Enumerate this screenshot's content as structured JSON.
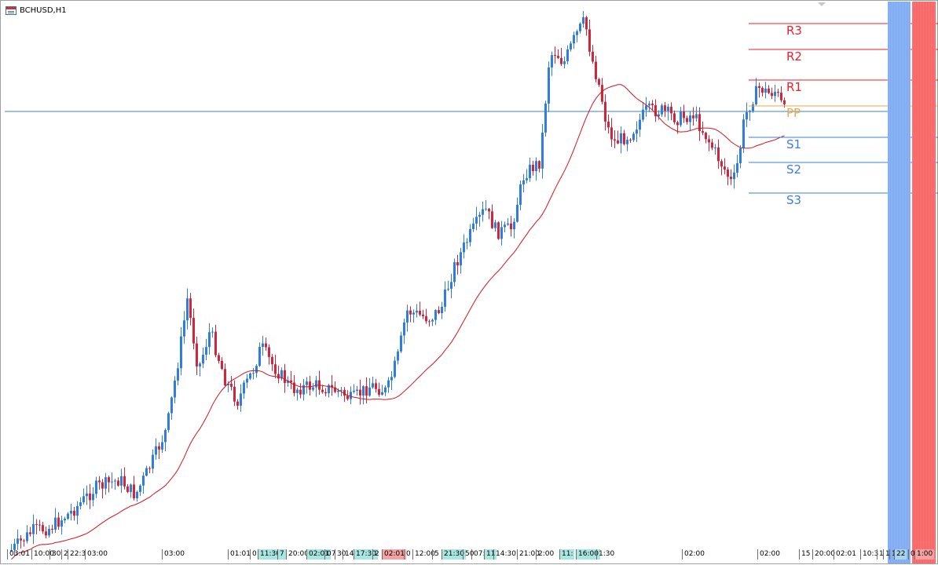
{
  "window": {
    "title": "BCHUSD,H1",
    "icon": "chart-window-icon"
  },
  "colors": {
    "bull_candle": "#2f7de1",
    "bear_candle": "#d0253a",
    "moving_average": "#d0151c",
    "resistance": "#e8202a",
    "support": "#3a7fd9",
    "pivot": "#e8a948",
    "crosshair": "#3a7fd9",
    "session_blue": "#8fb7f5",
    "session_red": "#ff6b6b"
  },
  "levels": [
    {
      "label": "R3",
      "kind": "resistance"
    },
    {
      "label": "R2",
      "kind": "resistance"
    },
    {
      "label": "R1",
      "kind": "resistance"
    },
    {
      "label": "PP",
      "kind": "pivot"
    },
    {
      "label": "S1",
      "kind": "support"
    },
    {
      "label": "S2",
      "kind": "support"
    },
    {
      "label": "S3",
      "kind": "support"
    }
  ],
  "time_axis": {
    "labels": [
      {
        "text": "03:01",
        "style": ""
      },
      {
        "text": "10:00",
        "style": ""
      },
      {
        "text": "30",
        "style": ""
      },
      {
        "text": "2",
        "style": ""
      },
      {
        "text": "22:3",
        "style": ""
      },
      {
        "text": "03:00",
        "style": ""
      },
      {
        "text": "03:00",
        "style": ""
      },
      {
        "text": "01:01",
        "style": ""
      },
      {
        "text": "0",
        "style": ""
      },
      {
        "text": "11:30",
        "style": "h-cyan"
      },
      {
        "text": "7",
        "style": "h-cyan"
      },
      {
        "text": "20:00",
        "style": ""
      },
      {
        "text": "02:01",
        "style": "h-cyan"
      },
      {
        "text": "07",
        "style": ""
      },
      {
        "text": "30",
        "style": ""
      },
      {
        "text": "14",
        "style": ""
      },
      {
        "text": "17:30",
        "style": "h-cyan"
      },
      {
        "text": "2",
        "style": ""
      },
      {
        "text": "02:01",
        "style": "h-red"
      },
      {
        "text": "0",
        "style": ""
      },
      {
        "text": "12:00",
        "style": ""
      },
      {
        "text": "5",
        "style": ""
      },
      {
        "text": "21:30",
        "style": "h-cyan"
      },
      {
        "text": "50",
        "style": ""
      },
      {
        "text": "07:",
        "style": ""
      },
      {
        "text": "11",
        "style": "h-cyan"
      },
      {
        "text": "14:30",
        "style": ""
      },
      {
        "text": "21:00",
        "style": ""
      },
      {
        "text": "2:00",
        "style": ""
      },
      {
        "text": "11:",
        "style": "h-cyan"
      },
      {
        "text": "16:00",
        "style": "h-cyan"
      },
      {
        "text": "1:30",
        "style": ""
      },
      {
        "text": "02:00",
        "style": ""
      },
      {
        "text": "02:00",
        "style": ""
      },
      {
        "text": "15",
        "style": ""
      },
      {
        "text": "20:00",
        "style": ""
      },
      {
        "text": "02:01",
        "style": ""
      },
      {
        "text": "10:3",
        "style": ""
      },
      {
        "text": "1",
        "style": ""
      },
      {
        "text": "1",
        "style": ""
      },
      {
        "text": "1",
        "style": ""
      },
      {
        "text": "22",
        "style": "h-blue"
      },
      {
        "text": "0",
        "style": ""
      },
      {
        "text": "1:00",
        "style": "h-red"
      }
    ]
  }
}
